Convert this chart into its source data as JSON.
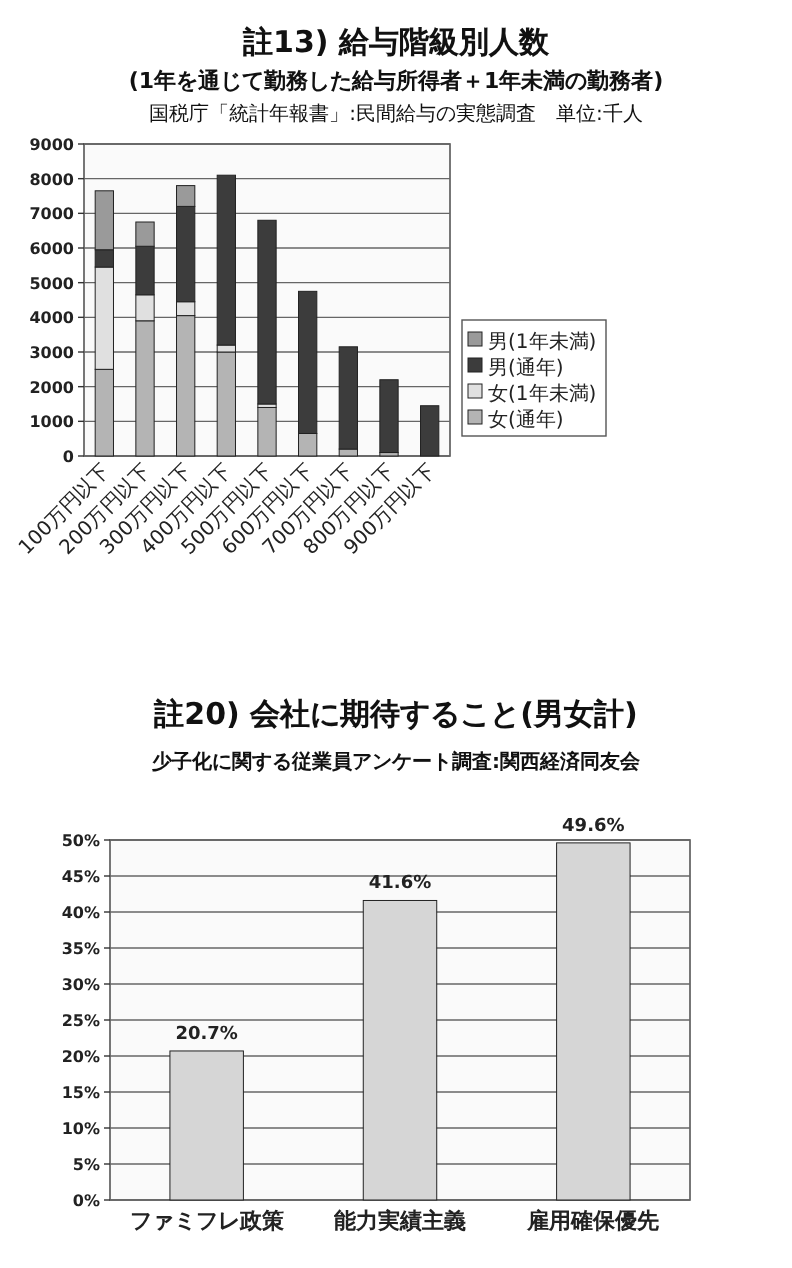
{
  "chart_data": [
    {
      "type": "bar",
      "title": "註13) 給与階級別人数",
      "subtitle": "(1年を通じて勤務した給与所得者＋1年未満の勤務者)",
      "annotations": [
        "国税庁「統計年報書」:民間給与の実態調査　単位:千人"
      ],
      "categories": [
        "100万円以下",
        "200万円以下",
        "300万円以下",
        "400万円以下",
        "500万円以下",
        "600万円以下",
        "700万円以下",
        "800万円以下",
        "900万円以下"
      ],
      "stacked": true,
      "ylim": [
        0,
        9000
      ],
      "yticks": [
        0,
        1000,
        2000,
        3000,
        4000,
        5000,
        6000,
        7000,
        8000,
        9000
      ],
      "grid": "y",
      "legend": "right",
      "series": [
        {
          "name": "女(通年)",
          "color": "#b4b4b4",
          "values": [
            2500,
            3900,
            4050,
            3000,
            1400,
            650,
            200,
            100,
            null
          ]
        },
        {
          "name": "女(1年未満)",
          "color": "#e0e0e0",
          "values": [
            2950,
            750,
            400,
            200,
            100,
            null,
            null,
            null,
            null
          ]
        },
        {
          "name": "男(通年)",
          "color": "#3c3c3c",
          "values": [
            500,
            1400,
            2750,
            4900,
            5300,
            4100,
            2950,
            2100,
            1450
          ]
        },
        {
          "name": "男(1年未満)",
          "color": "#9a9a9a",
          "values": [
            1700,
            700,
            600,
            null,
            null,
            null,
            null,
            null,
            null
          ]
        }
      ]
    },
    {
      "type": "bar",
      "title": "註20) 会社に期待すること(男女計)",
      "subtitle": "少子化に関する従業員アンケート調査:関西経済同友会",
      "categories": [
        "ファミフレ政策",
        "能力実績主義",
        "雇用確保優先"
      ],
      "values": [
        20.7,
        41.6,
        49.6
      ],
      "value_labels": [
        "20.7%",
        "41.6%",
        "49.6%"
      ],
      "color": "#d6d6d6",
      "ylim": [
        0,
        50
      ],
      "yticks": [
        {
          "value": 0,
          "label": "0%"
        },
        {
          "value": 5,
          "label": "5%"
        },
        {
          "value": 10,
          "label": "10%"
        },
        {
          "value": 15,
          "label": "15%"
        },
        {
          "value": 20,
          "label": "20%"
        },
        {
          "value": 25,
          "label": "25%"
        },
        {
          "value": 30,
          "label": "30%"
        },
        {
          "value": 35,
          "label": "35%"
        },
        {
          "value": 40,
          "label": "40%"
        },
        {
          "value": 45,
          "label": "45%"
        },
        {
          "value": 50,
          "label": "50%"
        }
      ],
      "grid": "y"
    }
  ]
}
